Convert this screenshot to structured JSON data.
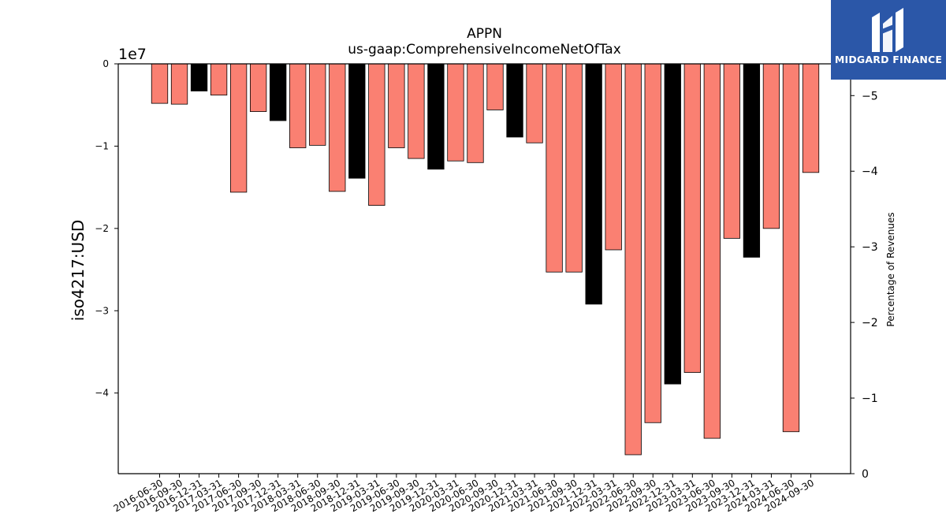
{
  "chart_data": {
    "type": "bar",
    "title": "APPN",
    "subtitle": "us-gaap:ComprehensiveIncomeNetOfTax",
    "ylabel": "iso4217:USD",
    "y_offset_label": "1e7",
    "y2label": "Percentage of Revenues",
    "ylim": [
      -4.98,
      0
    ],
    "y2lim": [
      0,
      -5.42
    ],
    "yticks": [
      0,
      -1,
      -2,
      -3,
      -4
    ],
    "y2ticks": [
      0,
      -1,
      -2,
      -3,
      -4,
      -5
    ],
    "categories": [
      "2016-06-30",
      "2016-09-30",
      "2016-12-31",
      "2017-03-31",
      "2017-06-30",
      "2017-09-30",
      "2017-12-31",
      "2018-03-31",
      "2018-06-30",
      "2018-09-30",
      "2018-12-31",
      "2019-03-31",
      "2019-06-30",
      "2019-09-30",
      "2019-12-31",
      "2020-03-31",
      "2020-06-30",
      "2020-09-30",
      "2020-12-31",
      "2021-03-31",
      "2021-06-30",
      "2021-09-30",
      "2021-12-31",
      "2022-03-31",
      "2022-06-30",
      "2022-09-30",
      "2022-12-31",
      "2023-03-31",
      "2023-06-30",
      "2023-09-30",
      "2023-12-31",
      "2024-03-31",
      "2024-06-30",
      "2024-09-30"
    ],
    "values": [
      -0.48,
      -0.49,
      -0.33,
      -0.38,
      -1.56,
      -0.58,
      -0.69,
      -1.02,
      -0.99,
      -1.55,
      -1.39,
      -1.72,
      -1.02,
      -1.15,
      -1.28,
      -1.18,
      -1.2,
      -0.56,
      -0.89,
      -0.96,
      -2.53,
      -2.53,
      -2.92,
      -2.26,
      -4.75,
      -4.36,
      -3.89,
      -3.75,
      -4.55,
      -2.12,
      -2.35,
      -2.0,
      -4.47,
      -1.32
    ],
    "bar_colors": [
      "salmon",
      "salmon",
      "black",
      "salmon",
      "salmon",
      "salmon",
      "black",
      "salmon",
      "salmon",
      "salmon",
      "black",
      "salmon",
      "salmon",
      "salmon",
      "black",
      "salmon",
      "salmon",
      "salmon",
      "black",
      "salmon",
      "salmon",
      "salmon",
      "black",
      "salmon",
      "salmon",
      "salmon",
      "black",
      "salmon",
      "salmon",
      "salmon",
      "black",
      "salmon",
      "salmon",
      "salmon"
    ],
    "colors": {
      "salmon": "#fa8072",
      "black": "#000000",
      "axis": "#000000"
    },
    "grid": false
  },
  "logo": {
    "text": "MIDGARD FINANCE",
    "background": "#2b57a8"
  }
}
